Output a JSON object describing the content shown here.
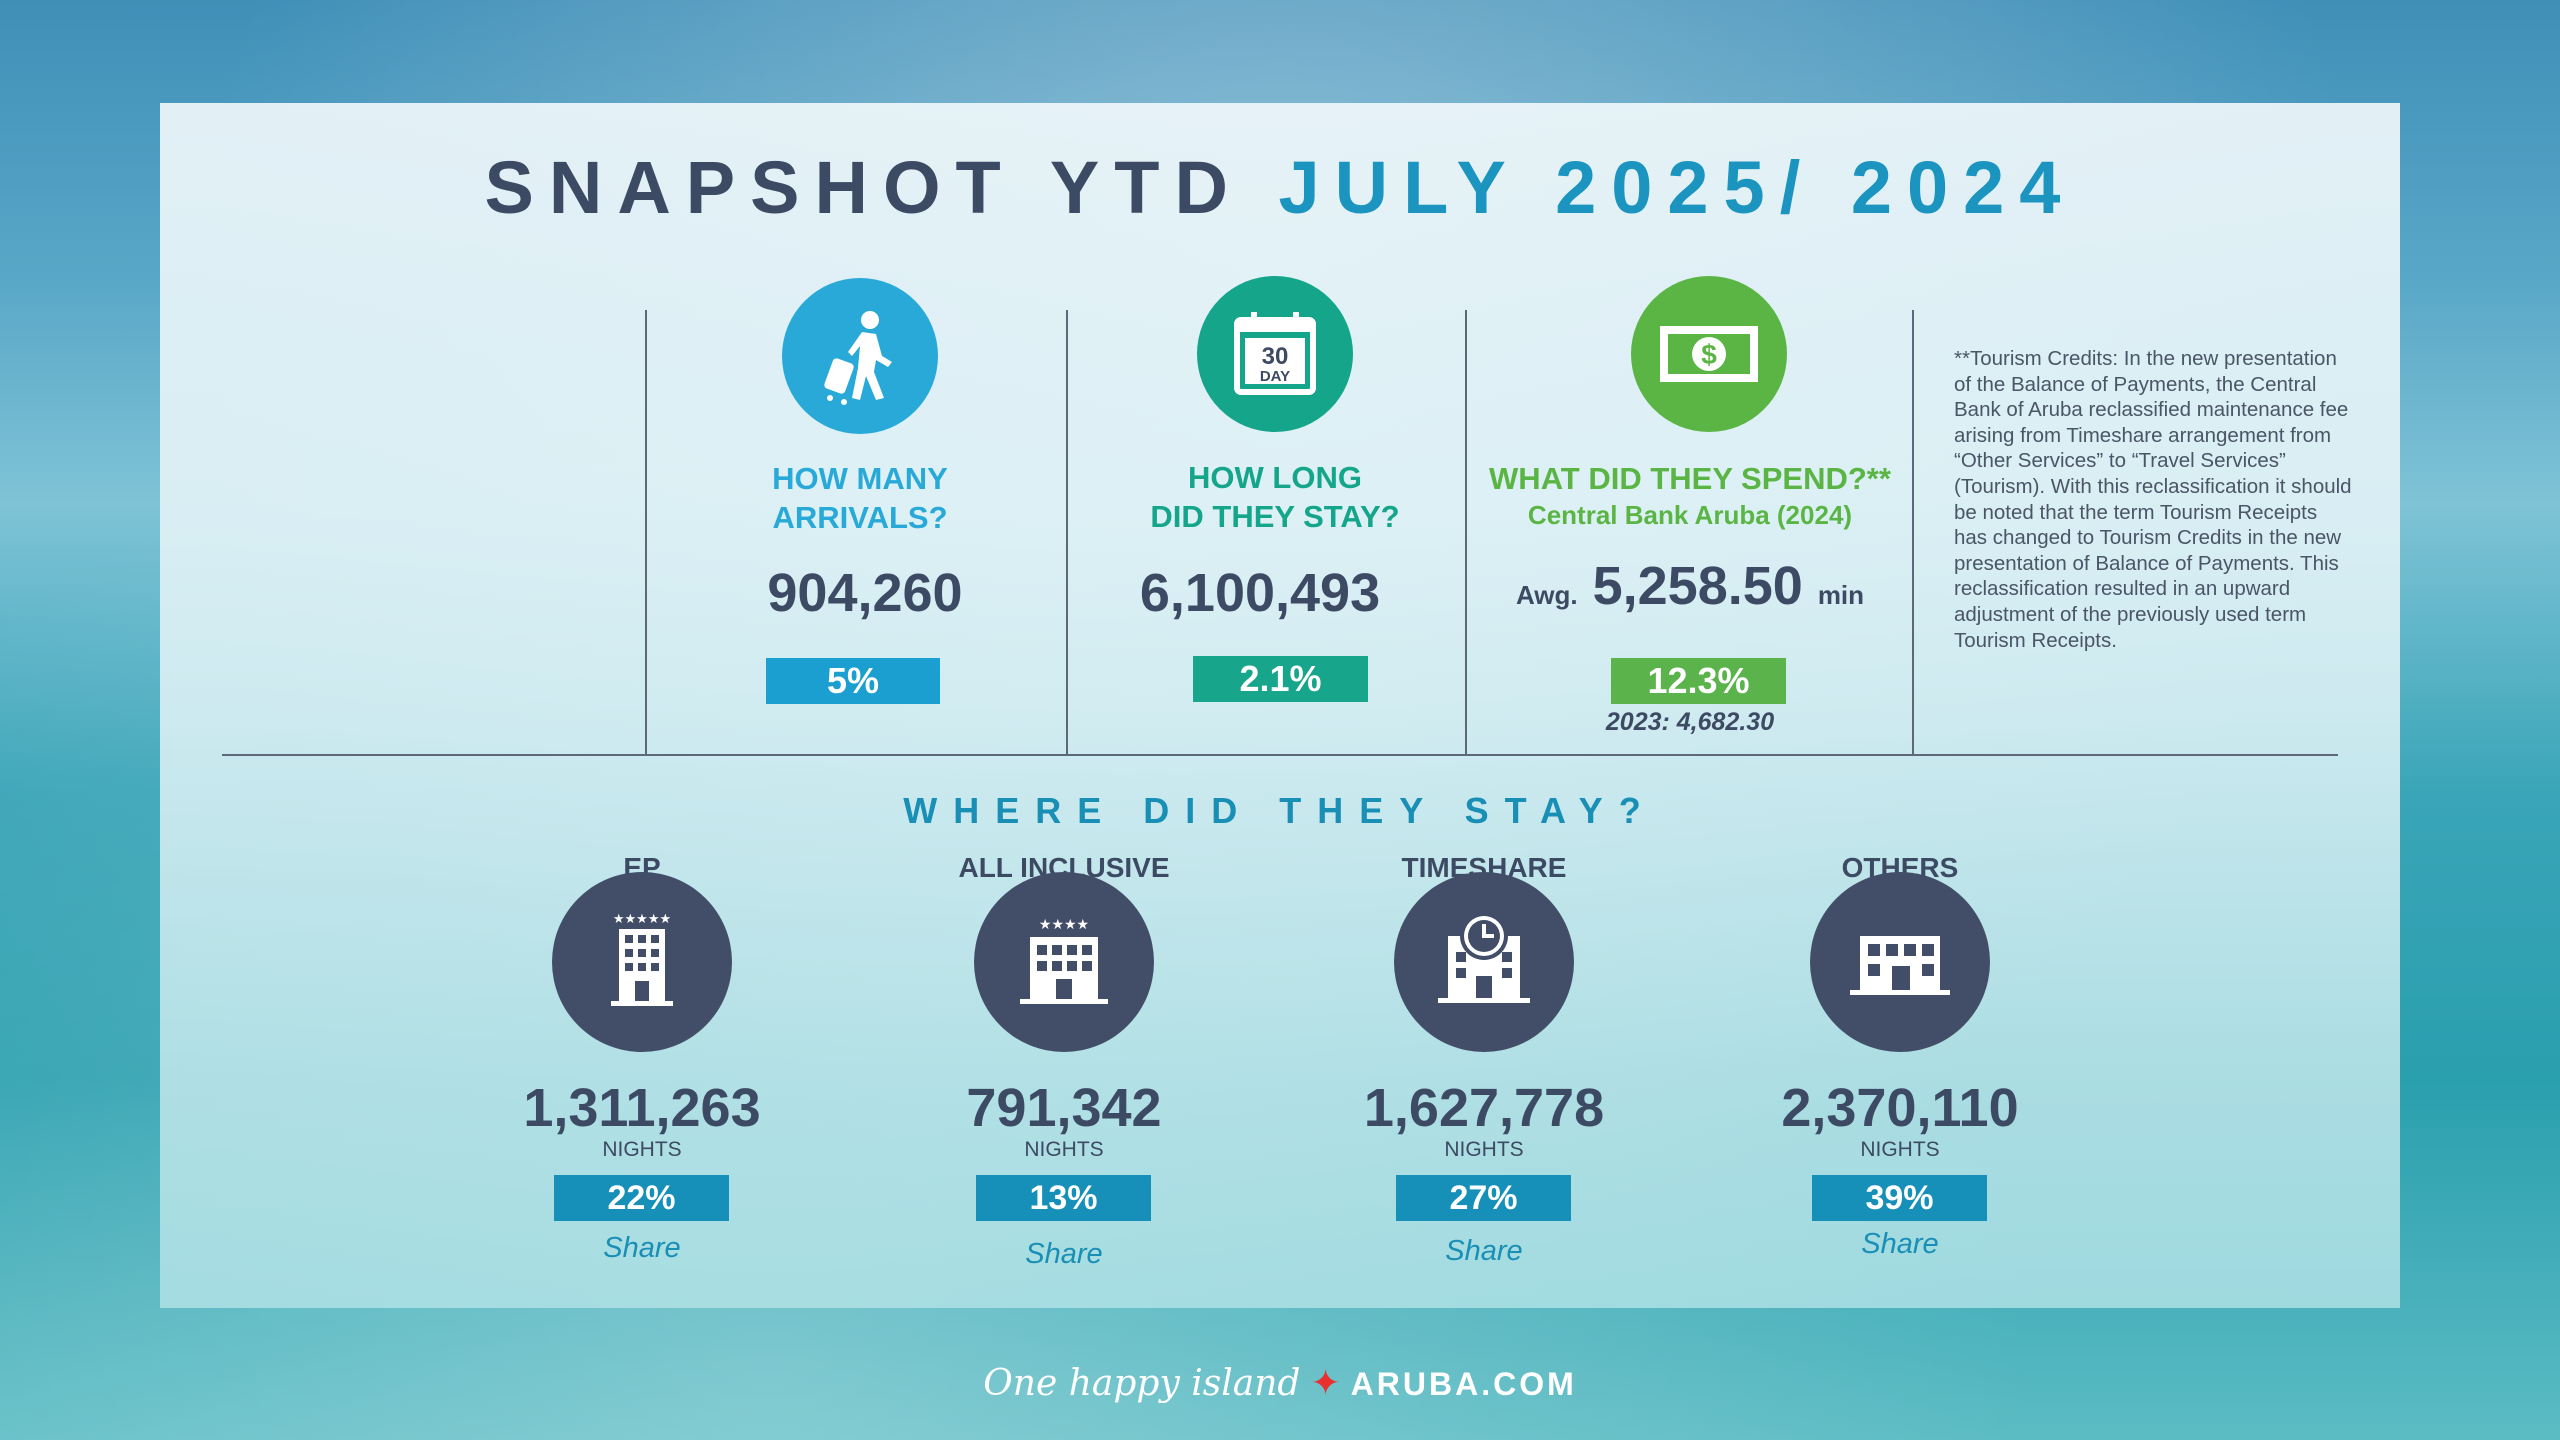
{
  "title": {
    "prefix": "SNAPSHOT YTD",
    "highlight": "JULY 2025/ 2024"
  },
  "stats": [
    {
      "icon": "traveler-luggage-icon",
      "heading_line1": "HOW MANY",
      "heading_line2": "ARRIVALS?",
      "value": "904,260",
      "change": "5%",
      "color": "#29a9d8"
    },
    {
      "icon": "calendar-30-day-icon",
      "icon_text_1": "30",
      "icon_text_2": "DAY",
      "heading_line1": "HOW LONG",
      "heading_line2": "DID THEY STAY?",
      "value": "6,100,493",
      "change": "2.1%",
      "color": "#14a58a"
    },
    {
      "icon": "dollar-bill-icon",
      "heading_line1": "WHAT DID THEY SPEND?**",
      "heading_line2": "Central Bank Aruba (2024)",
      "value_prefix": "Awg.",
      "value": "5,258.50",
      "value_suffix": "min",
      "change": "12.3%",
      "previous": "2023: 4,682.30",
      "color": "#5bb544"
    }
  ],
  "footnote": "**Tourism Credits: In the new presentation of the Balance of Payments, the Central Bank of Aruba reclassified maintenance fee arising from Timeshare arrangement from “Other Services” to “Travel Services” (Tourism). With this reclassification it should be noted that the term Tourism Receipts has changed to Tourism Credits in the new presentation of Balance of Payments. This reclassification resulted in an upward adjustment of the previously used term Tourism Receipts.",
  "stay": {
    "heading": "WHERE DID THEY STAY?",
    "unit": "NIGHTS",
    "share_label": "Share",
    "items": [
      {
        "label": "EP",
        "value": "1,311,263",
        "share": "22%",
        "icon": "hotel-5-star-icon"
      },
      {
        "label": "ALL INCLUSIVE",
        "value": "791,342",
        "share": "13%",
        "icon": "hotel-4-star-icon"
      },
      {
        "label": "TIMESHARE",
        "value": "1,627,778",
        "share": "27%",
        "icon": "hotel-clock-icon"
      },
      {
        "label": "OTHERS",
        "value": "2,370,110",
        "share": "39%",
        "icon": "building-icon"
      }
    ]
  },
  "footer": {
    "slogan": "One happy island",
    "site": "ARUBA.COM"
  }
}
